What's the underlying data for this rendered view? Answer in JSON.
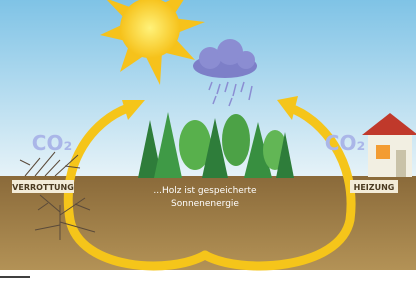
{
  "left": {
    "gas": "CO₂",
    "label": "VERROTTUNG"
  },
  "right": {
    "gas": "CO₂",
    "label": "HEIZUNG"
  },
  "caption": [
    "...Holz ist gespeicherte",
    "Sonnenenergie"
  ]
}
